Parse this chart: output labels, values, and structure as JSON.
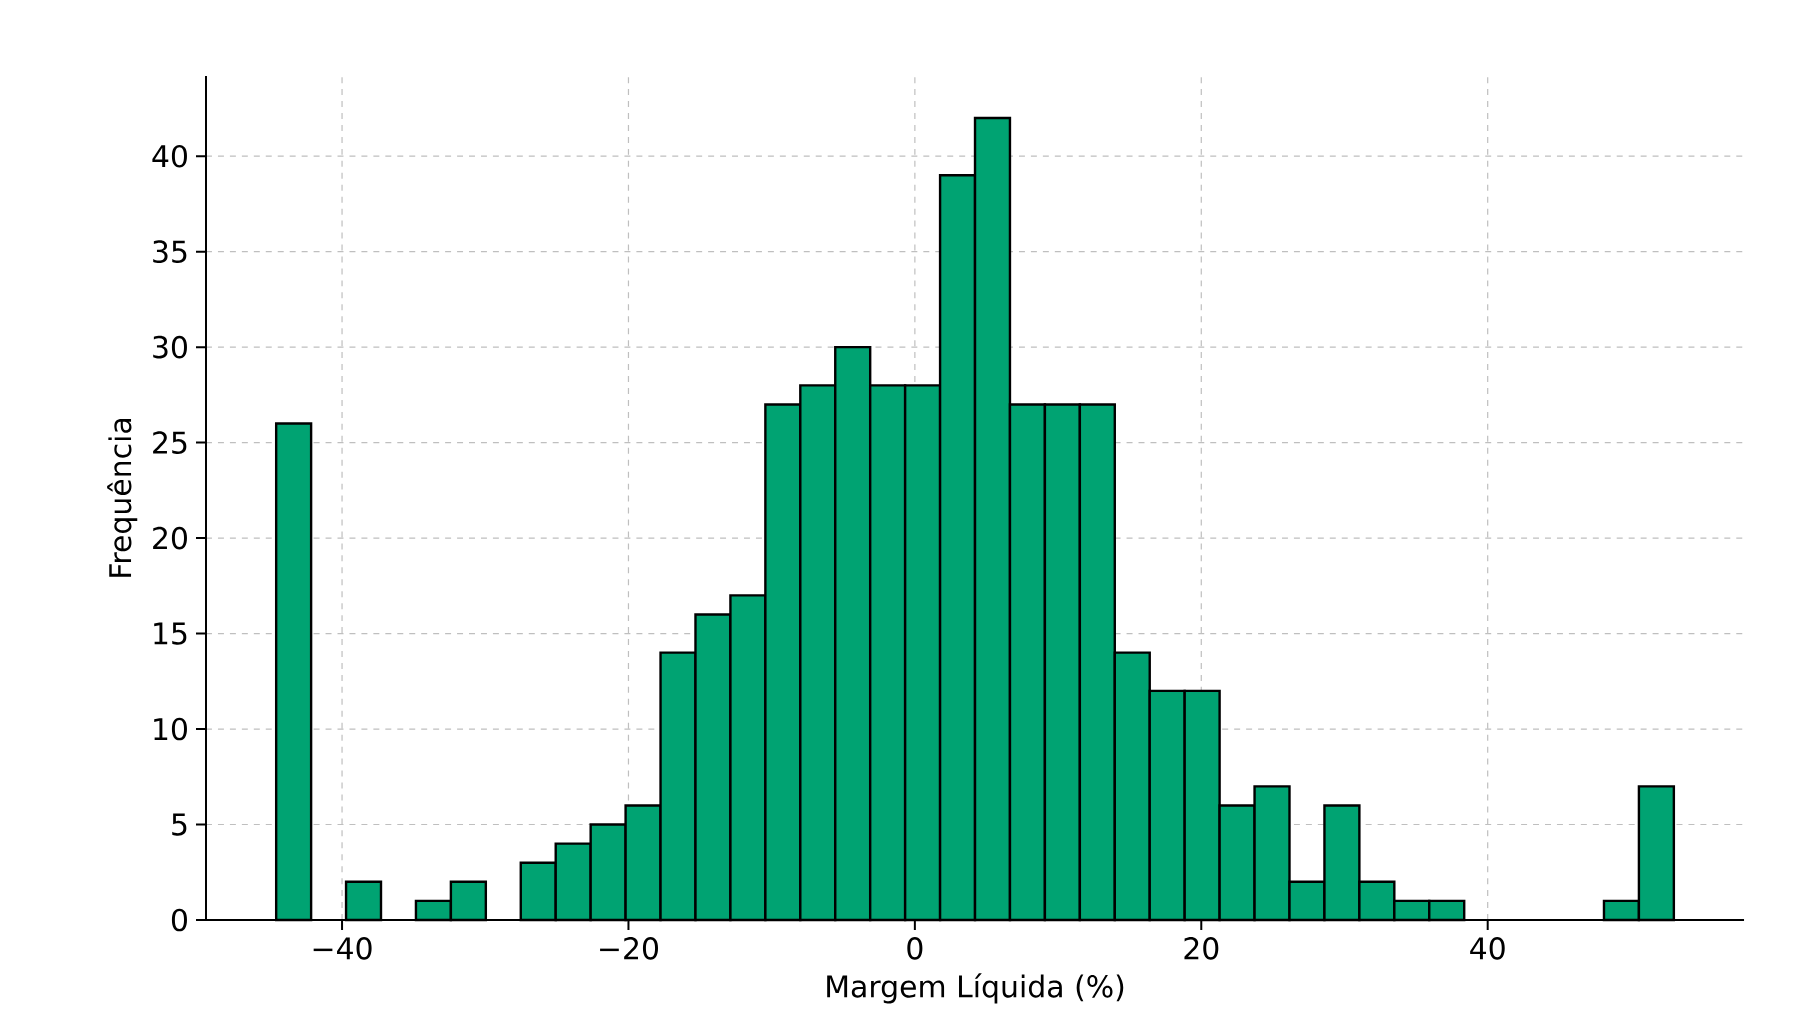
{
  "chart_data": {
    "type": "histogram",
    "xlabel": "Margem Líquida (%)",
    "ylabel": "Frequência",
    "color": "#00a372",
    "bins": [
      -44.6,
      -42.16,
      -39.72,
      -37.28,
      -34.84,
      -32.4,
      -29.96,
      -27.52,
      -25.08,
      -22.64,
      -20.2,
      -17.76,
      -15.32,
      -12.88,
      -10.44,
      -8.0,
      -5.56,
      -3.12,
      -0.68,
      1.76,
      4.2,
      6.64,
      9.08,
      11.52,
      13.96,
      16.4,
      18.84,
      21.28,
      23.72,
      26.16,
      28.6,
      31.04,
      33.48,
      35.92,
      38.36,
      40.8,
      43.24,
      45.68,
      48.12,
      50.56,
      53.0
    ],
    "values": [
      26,
      0,
      2,
      0,
      1,
      2,
      0,
      3,
      4,
      5,
      6,
      14,
      16,
      17,
      27,
      28,
      30,
      28,
      28,
      39,
      42,
      27,
      27,
      27,
      14,
      12,
      12,
      6,
      7,
      2,
      6,
      2,
      1,
      1,
      0,
      0,
      0,
      0,
      1,
      7
    ],
    "xlim": [
      -49.5,
      57.9
    ],
    "ylim": [
      0,
      44.2
    ],
    "xticks": [
      {
        "value": -40,
        "label": "−40"
      },
      {
        "value": -20,
        "label": "−20"
      },
      0,
      20,
      40
    ],
    "yticks": [
      0,
      5,
      10,
      15,
      20,
      25,
      30,
      35,
      40
    ],
    "grid": true
  }
}
